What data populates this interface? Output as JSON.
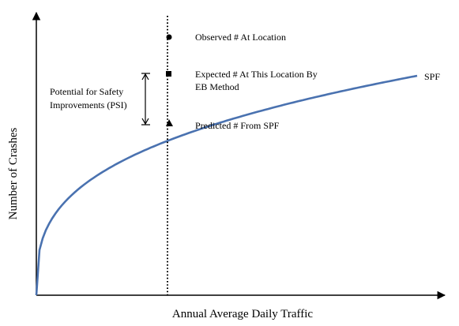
{
  "chart_data": {
    "type": "line",
    "axes": {
      "xlabel": "Annual Average Daily Traffic",
      "ylabel": "Number of Crashes",
      "ticks": false
    },
    "series": [
      {
        "name": "SPF",
        "shape": "concave increasing curve",
        "color": "#4a72b0"
      }
    ],
    "reference_line": {
      "style": "dotted",
      "orientation": "vertical"
    },
    "points": [
      {
        "marker": "circle",
        "label": "Observed # At Location"
      },
      {
        "marker": "square",
        "label_lines": [
          "Expected # At This Location By",
          "EB Method"
        ]
      },
      {
        "marker": "triangle",
        "label": "Predicted # From SPF"
      }
    ],
    "bracket": {
      "label_lines": [
        "Potential for Safety",
        "Improvements (PSI)"
      ]
    }
  }
}
